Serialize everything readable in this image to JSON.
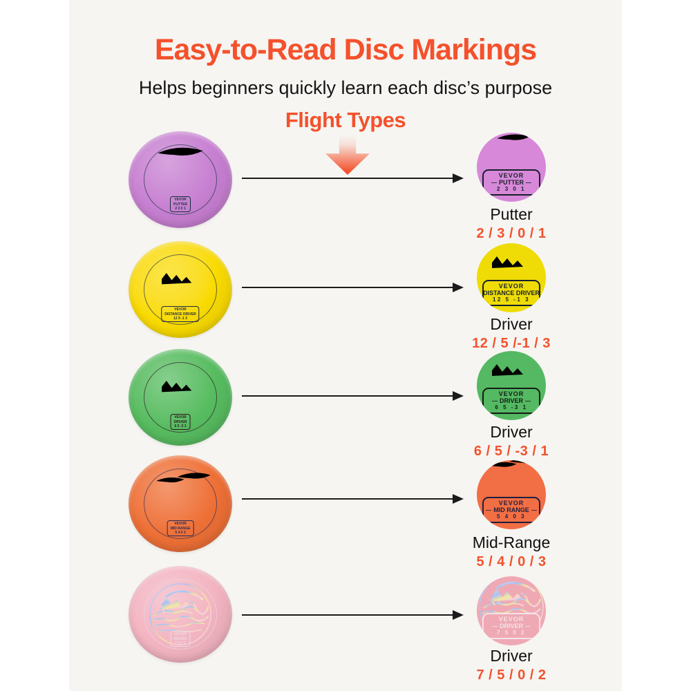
{
  "page": {
    "title": "Easy-to-Read Disc Markings",
    "subtitle": "Helps beginners quickly learn each disc’s purpose",
    "section_heading": "Flight Types",
    "colors": {
      "accent": "#f4512c",
      "canvas_background": "#f6f5f2",
      "text": "#141414",
      "arrow": "#1b1b1b"
    }
  },
  "icons": {
    "down_arrow": "gradient-down-arrow",
    "flow_arrow": "right-arrow"
  },
  "discs": [
    {
      "type_label": "Putter",
      "flight_numbers": "2 / 3 / 0 / 1",
      "badge": {
        "brand": "VEVOR",
        "name": "PUTTER",
        "numbers": "2 3 0 1"
      },
      "stamp": "tornado",
      "color": "#c77fd1",
      "detail_color": "#d788d8",
      "stamp_color": "#15333a",
      "ink": "#15202b"
    },
    {
      "type_label": "Driver",
      "flight_numbers": "12 / 5 /-1 / 3",
      "badge": {
        "brand": "VEVOR",
        "name": "DISTANCE DRIVER",
        "numbers": "12 5 -1 3"
      },
      "stamp": "landscape",
      "color": "#fadb00",
      "detail_color": "#efdc06",
      "stamp_color": "#1c2a44",
      "ink": "#16202e"
    },
    {
      "type_label": "Driver",
      "flight_numbers": "6 / 5 / -3 / 1",
      "badge": {
        "brand": "VEVOR",
        "name": "DRIVER",
        "numbers": "6 5 -3 1"
      },
      "stamp": "landscape",
      "color": "#57bc60",
      "detail_color": "#54b962",
      "stamp_color": "#2e1420",
      "ink": "#141a16"
    },
    {
      "type_label": "Mid-Range",
      "flight_numbers": "5 / 4 / 0 / 3",
      "badge": {
        "brand": "VEVOR",
        "name": "MID RANGE",
        "numbers": "5 4 0 3"
      },
      "stamp": "double-tornado",
      "color": "#ee7036",
      "detail_color": "#f26e44",
      "stamp_color": "#262b5a",
      "ink": "#1d1f3e"
    },
    {
      "type_label": "Driver",
      "flight_numbers": "7 / 5 / 0 / 2",
      "badge": {
        "brand": "VEVOR",
        "name": "DRIVER",
        "numbers": "7 5 0 2"
      },
      "stamp": "holo-landscape",
      "color": "#f3b4c1",
      "detail_color": "#efa9b4",
      "stamp_color": "#e9d9e6",
      "ink": "#f2e3e9"
    }
  ]
}
